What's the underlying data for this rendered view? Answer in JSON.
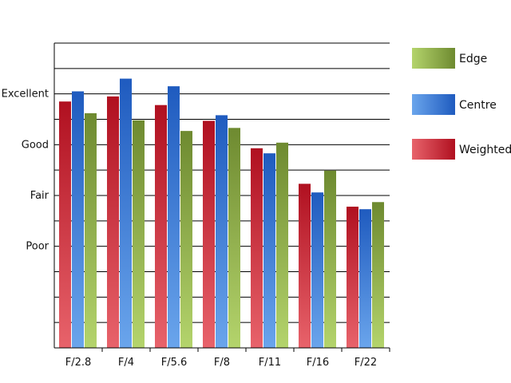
{
  "chart_data": {
    "type": "bar",
    "categories": [
      "F/2.8",
      "F/4",
      "F/5.6",
      "F/8",
      "F/11",
      "F/16",
      "F/22"
    ],
    "series": [
      {
        "name": "Weighted",
        "values": [
          3.85,
          3.95,
          3.78,
          3.47,
          2.93,
          2.23,
          1.78
        ]
      },
      {
        "name": "Centre",
        "values": [
          4.05,
          4.3,
          4.15,
          3.58,
          2.83,
          2.06,
          1.73
        ]
      },
      {
        "name": "Edge",
        "values": [
          3.62,
          3.48,
          3.27,
          3.33,
          3.04,
          2.49,
          1.87
        ]
      }
    ],
    "y_tick_labels": [
      {
        "value": 1,
        "label": "Poor"
      },
      {
        "value": 2,
        "label": "Fair"
      },
      {
        "value": 3,
        "label": "Good"
      },
      {
        "value": 4,
        "label": "Excellent"
      }
    ],
    "ylim": [
      -1,
      5
    ],
    "grid": true,
    "legend_position": "right",
    "legend_order": [
      "Edge",
      "Centre",
      "Weighted"
    ],
    "colors": {
      "Weighted": {
        "light": "#e8636b",
        "dark": "#b01020"
      },
      "Centre": {
        "light": "#6aa5ec",
        "dark": "#1f5bbf"
      },
      "Edge": {
        "light": "#b4d46c",
        "dark": "#6e8a30"
      }
    }
  }
}
